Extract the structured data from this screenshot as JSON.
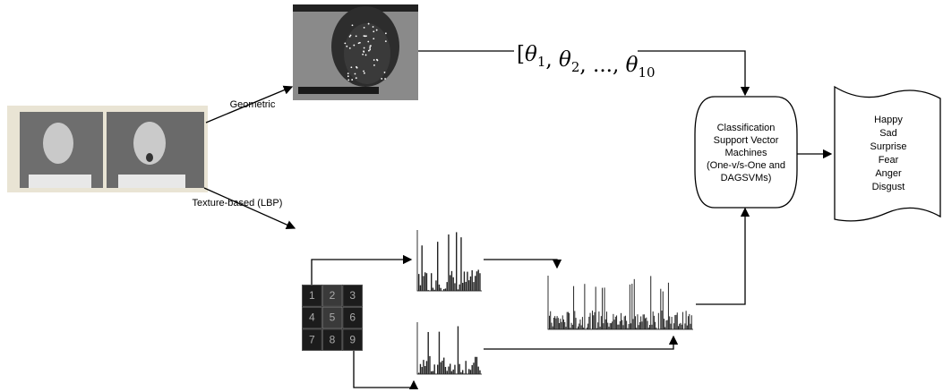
{
  "branches": {
    "geometric": "Geometric",
    "texture": "Texture-based (LBP)"
  },
  "formula": {
    "open": "[",
    "terms": [
      {
        "symbol": "θ",
        "sub": "1"
      },
      {
        "symbol": "θ",
        "sub": "2"
      },
      {
        "symbol": "...",
        "sub": ""
      },
      {
        "symbol": "θ",
        "sub": "10"
      }
    ]
  },
  "classifier": {
    "lines": [
      "Classification",
      "Support Vector",
      "Machines",
      "(One-v/s-One and",
      "DAGSVMs)"
    ]
  },
  "emotions": [
    "Happy",
    "Sad",
    "Surprise",
    "Fear",
    "Anger",
    "Disgust"
  ],
  "grid_cells": [
    "1",
    "2",
    "3",
    "4",
    "5",
    "6",
    "7",
    "8",
    "9"
  ]
}
